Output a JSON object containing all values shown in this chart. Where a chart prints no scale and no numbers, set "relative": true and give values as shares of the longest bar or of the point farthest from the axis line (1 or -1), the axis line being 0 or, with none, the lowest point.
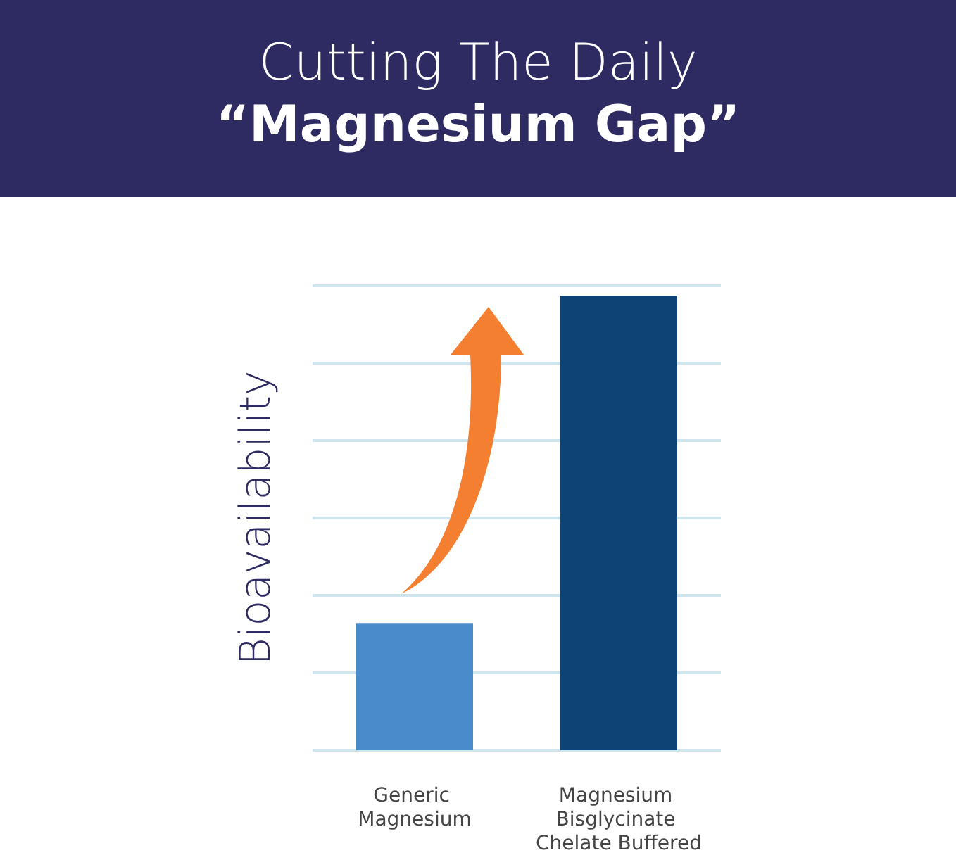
{
  "chart_data": {
    "type": "bar",
    "title": "Cutting The Daily\n“Magnesium Gap”",
    "ylabel": "Bioavailability",
    "categories": [
      "Generic Magnesium",
      "Magnesium Bisglycinate Chelate Buffered"
    ],
    "values": [
      0.28,
      1
    ],
    "colors": [
      "#4a8ccb",
      "#0d4475"
    ],
    "relative": true,
    "grid": "y"
  }
}
